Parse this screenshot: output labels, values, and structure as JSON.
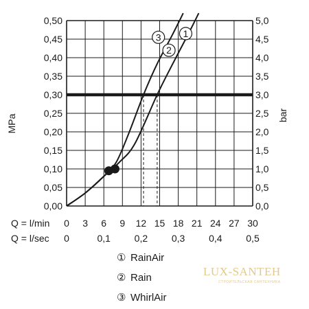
{
  "chart_data": {
    "type": "line",
    "ylabel_left": "MPa",
    "ylabel_right": "bar",
    "ylim": [
      0,
      0.5
    ],
    "yticks_left": [
      "0,00",
      "0,05",
      "0,10",
      "0,15",
      "0,20",
      "0,25",
      "0,30",
      "0,35",
      "0,40",
      "0,45",
      "0,50"
    ],
    "yticks_right": [
      "0,0",
      "0,5",
      "1,0",
      "1,5",
      "2,0",
      "2,5",
      "3,0",
      "3,5",
      "4,0",
      "4,5",
      "5,0"
    ],
    "xlim": [
      0,
      30
    ],
    "x_row1_label": "Q = l/min",
    "x_row1_ticks": [
      "0",
      "3",
      "6",
      "9",
      "12",
      "15",
      "18",
      "21",
      "24",
      "27",
      "30"
    ],
    "x_row2_label": "Q = l/sec",
    "x_row2_ticks": [
      "0",
      "0,1",
      "0,2",
      "0,3",
      "0,4",
      "0,5"
    ],
    "reference_line": 0.3,
    "series": [
      {
        "name": "RainAir",
        "id": "1",
        "x": [
          0,
          3,
          6,
          8.5,
          11,
          14.6,
          17,
          19.5,
          21.3
        ],
        "y": [
          0,
          0.035,
          0.08,
          0.118,
          0.168,
          0.3,
          0.38,
          0.46,
          0.52
        ]
      },
      {
        "name": "Rain",
        "id": "2",
        "x": [
          0,
          3,
          6,
          8.5,
          11,
          14.6,
          17,
          19.5,
          21.3
        ],
        "y": [
          0,
          0.035,
          0.08,
          0.118,
          0.168,
          0.3,
          0.38,
          0.46,
          0.52
        ]
      },
      {
        "name": "WhirlAir",
        "id": "3",
        "x": [
          0,
          3,
          6,
          8,
          10,
          12.4,
          14.5,
          17,
          18.8
        ],
        "y": [
          0,
          0.035,
          0.08,
          0.118,
          0.195,
          0.3,
          0.38,
          0.46,
          0.52
        ]
      }
    ],
    "markers": [
      {
        "x": 6.8,
        "y": 0.095
      },
      {
        "x": 7.8,
        "y": 0.1
      }
    ],
    "guide_lines_x": [
      12.4,
      14.6
    ],
    "curve_labels": [
      {
        "text": "3",
        "x": 14.8,
        "y": 0.455
      },
      {
        "text": "2",
        "x": 16.5,
        "y": 0.42
      },
      {
        "text": "1",
        "x": 19.2,
        "y": 0.465
      }
    ]
  },
  "legend": [
    {
      "num": "①",
      "label": "RainAir"
    },
    {
      "num": "②",
      "label": "Rain"
    },
    {
      "num": "③",
      "label": "WhirlAir"
    }
  ],
  "watermark": {
    "title": "LUX-SANTEH",
    "subtitle": "СТРОИТЕЛЬСКАЯ САНТЕХНИКА"
  }
}
